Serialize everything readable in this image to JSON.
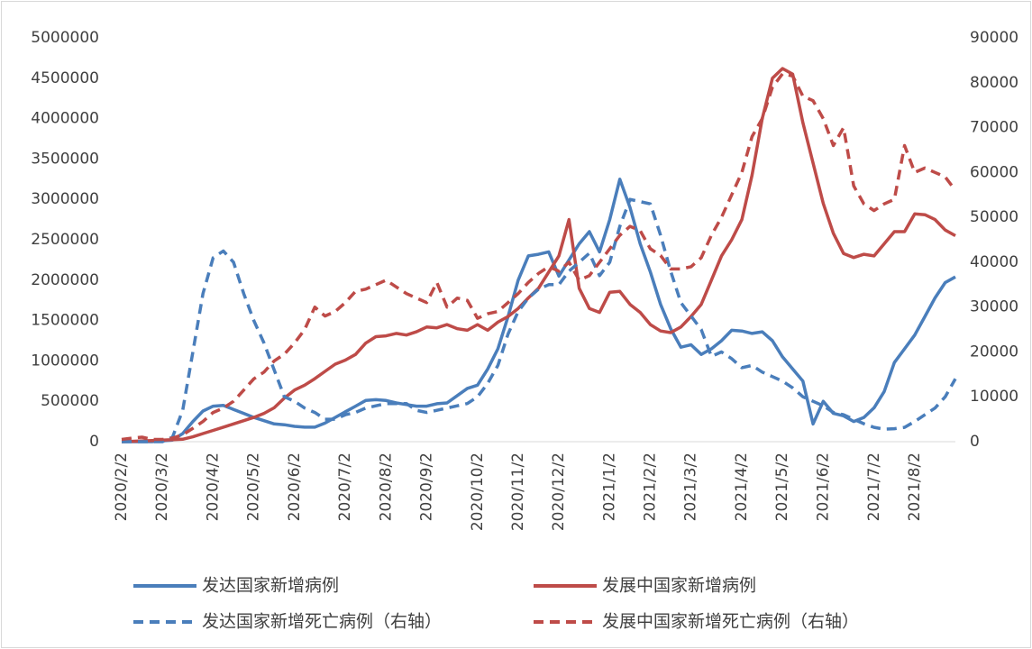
{
  "chart_data": {
    "type": "line",
    "categories": [
      "2020/2/2",
      null,
      null,
      null,
      "2020/3/2",
      null,
      null,
      null,
      null,
      "2020/4/2",
      null,
      null,
      null,
      "2020/5/2",
      null,
      null,
      null,
      "2020/6/2",
      null,
      null,
      null,
      null,
      "2020/7/2",
      null,
      null,
      null,
      "2020/8/2",
      null,
      null,
      null,
      "2020/9/2",
      null,
      null,
      null,
      null,
      "2020/10/2",
      null,
      null,
      null,
      "2020/11/2",
      null,
      null,
      null,
      "2020/12/2",
      null,
      null,
      null,
      null,
      "2021/1/2",
      null,
      null,
      null,
      "2021/2/2",
      null,
      null,
      null,
      "2021/3/2",
      null,
      null,
      null,
      null,
      "2021/4/2",
      null,
      null,
      null,
      "2021/5/2",
      null,
      null,
      null,
      "2021/6/2",
      null,
      null,
      null,
      null,
      "2021/7/2",
      null,
      null,
      null,
      "2021/8/2",
      null,
      null,
      null,
      null
    ],
    "series": [
      {
        "name": "发达国家新增病例",
        "color": "#4a7ebb",
        "line_style": "solid",
        "axis": "y",
        "values": [
          0,
          0,
          0,
          0,
          10000,
          20000,
          100000,
          250000,
          380000,
          440000,
          450000,
          400000,
          350000,
          300000,
          260000,
          220000,
          210000,
          190000,
          180000,
          180000,
          230000,
          300000,
          370000,
          440000,
          510000,
          520000,
          510000,
          480000,
          460000,
          440000,
          440000,
          470000,
          480000,
          570000,
          660000,
          700000,
          900000,
          1150000,
          1550000,
          2000000,
          2300000,
          2320000,
          2350000,
          2050000,
          2250000,
          2450000,
          2600000,
          2350000,
          2750000,
          3250000,
          2900000,
          2450000,
          2100000,
          1700000,
          1400000,
          1170000,
          1200000,
          1080000,
          1150000,
          1250000,
          1380000,
          1370000,
          1340000,
          1360000,
          1250000,
          1050000,
          900000,
          750000,
          220000,
          500000,
          350000,
          320000,
          250000,
          300000,
          420000,
          620000,
          980000,
          1150000,
          1320000,
          1550000,
          1780000,
          1970000,
          2040000
        ]
      },
      {
        "name": "发展中国家新增病例",
        "color": "#be4b48",
        "line_style": "solid",
        "axis": "y",
        "values": [
          0,
          5000,
          10000,
          15000,
          20000,
          25000,
          30000,
          60000,
          100000,
          140000,
          180000,
          220000,
          260000,
          300000,
          350000,
          420000,
          540000,
          640000,
          700000,
          780000,
          870000,
          960000,
          1010000,
          1080000,
          1220000,
          1300000,
          1310000,
          1340000,
          1320000,
          1360000,
          1420000,
          1410000,
          1450000,
          1400000,
          1380000,
          1450000,
          1380000,
          1480000,
          1550000,
          1650000,
          1780000,
          1900000,
          2100000,
          2300000,
          2750000,
          1900000,
          1650000,
          1600000,
          1850000,
          1860000,
          1700000,
          1600000,
          1450000,
          1370000,
          1350000,
          1420000,
          1550000,
          1700000,
          2000000,
          2300000,
          2500000,
          2750000,
          3300000,
          4000000,
          4500000,
          4620000,
          4550000,
          3950000,
          3450000,
          2950000,
          2580000,
          2330000,
          2280000,
          2320000,
          2300000,
          2450000,
          2600000,
          2600000,
          2820000,
          2810000,
          2750000,
          2620000,
          2550000
        ]
      },
      {
        "name": "发达国家新增死亡病例（右轴）",
        "color": "#4a7ebb",
        "line_style": "dashed",
        "axis": "y2",
        "values": [
          0,
          0,
          0,
          0,
          0,
          1000,
          7000,
          20000,
          33000,
          41000,
          42500,
          40000,
          33000,
          27000,
          22000,
          16000,
          10000,
          9000,
          7500,
          6500,
          5000,
          5000,
          6000,
          6500,
          7500,
          8000,
          8500,
          8500,
          8500,
          7000,
          6500,
          7000,
          7500,
          8000,
          8500,
          10000,
          13000,
          17000,
          24000,
          29000,
          32000,
          34000,
          35000,
          35000,
          38000,
          40000,
          42000,
          37000,
          40000,
          48000,
          54000,
          53500,
          53000,
          46000,
          38000,
          31000,
          28000,
          25000,
          19000,
          20000,
          18500,
          16500,
          17000,
          15500,
          14500,
          13500,
          12000,
          10000,
          9000,
          8000,
          6500,
          6000,
          5000,
          4000,
          3200,
          2800,
          2900,
          3200,
          4500,
          6000,
          7500,
          10000,
          14000
        ]
      },
      {
        "name": "发展中国家新增死亡病例（右轴）",
        "color": "#be4b48",
        "line_style": "dashed",
        "axis": "y2",
        "values": [
          500,
          800,
          1000,
          500,
          500,
          800,
          1500,
          3000,
          4500,
          6500,
          7500,
          9000,
          11500,
          14000,
          15500,
          18000,
          19500,
          22000,
          25000,
          30000,
          28000,
          29000,
          31000,
          33500,
          34000,
          35000,
          36000,
          34500,
          33000,
          32000,
          31000,
          35500,
          30000,
          32000,
          31500,
          27500,
          28500,
          29000,
          31000,
          33000,
          35500,
          37500,
          39000,
          38000,
          40000,
          36000,
          37000,
          40000,
          43000,
          46000,
          48000,
          47000,
          43000,
          41500,
          38500,
          38500,
          39000,
          41000,
          46000,
          50000,
          55000,
          60000,
          68000,
          72000,
          79000,
          82000,
          81500,
          77000,
          76000,
          72000,
          66000,
          70000,
          57000,
          53000,
          51500,
          53000,
          54000,
          66000,
          60000,
          61000,
          60000,
          59000,
          56000
        ]
      }
    ],
    "ylim": [
      0,
      5000000
    ],
    "yticks": [
      0,
      500000,
      1000000,
      1500000,
      2000000,
      2500000,
      3000000,
      3500000,
      4000000,
      4500000,
      5000000
    ],
    "y2lim": [
      0,
      90000
    ],
    "y2ticks": [
      0,
      10000,
      20000,
      30000,
      40000,
      50000,
      60000,
      70000,
      80000,
      90000
    ],
    "legend": "bottom",
    "grid": false
  }
}
